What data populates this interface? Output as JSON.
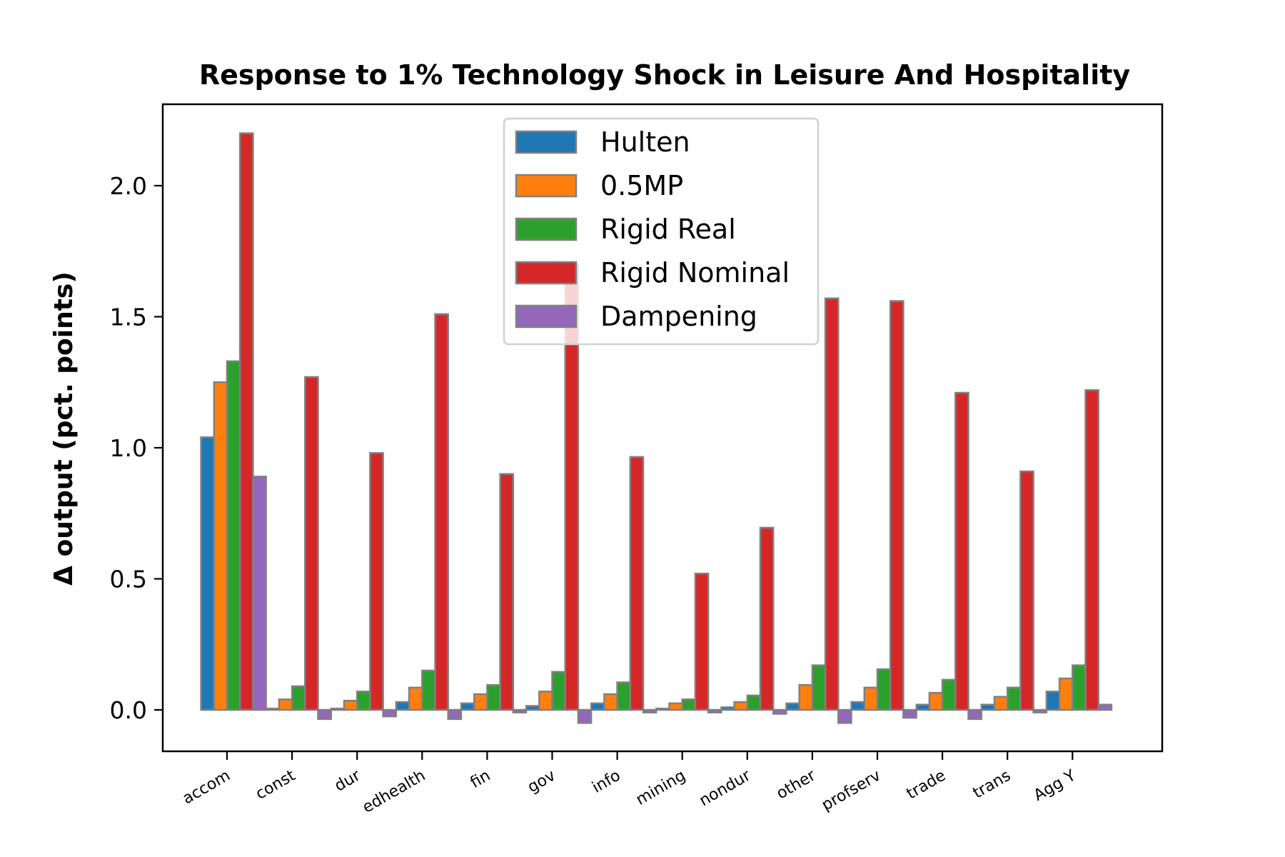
{
  "chart_data": {
    "type": "bar",
    "title": "Response to 1% Technology Shock in Leisure And Hospitality",
    "xlabel": "",
    "ylabel": "Δ output (pct. points)",
    "ylim": [
      -0.16,
      2.3
    ],
    "yticks": [
      "0.0",
      "0.5",
      "1.0",
      "1.5",
      "2.0"
    ],
    "ytick_values": [
      0.0,
      0.5,
      1.0,
      1.5,
      2.0
    ],
    "grid": false,
    "legend_position": "upper center",
    "categories": [
      "accom",
      "const",
      "dur",
      "edhealth",
      "fin",
      "gov",
      "info",
      "mining",
      "nondur",
      "other",
      "profserv",
      "trade",
      "trans",
      "Agg Y"
    ],
    "series": [
      {
        "name": "Hulten",
        "color": "#1f77b4",
        "values": [
          1.04,
          0.005,
          0.005,
          0.03,
          0.025,
          0.015,
          0.025,
          0.005,
          0.01,
          0.025,
          0.03,
          0.02,
          0.02,
          0.07
        ]
      },
      {
        "name": "0.5MP",
        "color": "#ff7f0e",
        "values": [
          1.25,
          0.04,
          0.035,
          0.085,
          0.06,
          0.07,
          0.06,
          0.025,
          0.03,
          0.095,
          0.085,
          0.065,
          0.05,
          0.12
        ]
      },
      {
        "name": "Rigid Real",
        "color": "#2ca02c",
        "values": [
          1.33,
          0.09,
          0.07,
          0.15,
          0.095,
          0.145,
          0.105,
          0.04,
          0.055,
          0.17,
          0.155,
          0.115,
          0.085,
          0.17
        ]
      },
      {
        "name": "Rigid Nominal",
        "color": "#d62728",
        "values": [
          2.2,
          1.27,
          0.98,
          1.51,
          0.9,
          1.7,
          0.965,
          0.52,
          0.695,
          1.57,
          1.56,
          1.21,
          0.91,
          1.22
        ]
      },
      {
        "name": "Dampening",
        "color": "#9467bd",
        "values": [
          0.89,
          -0.035,
          -0.025,
          -0.035,
          -0.01,
          -0.05,
          -0.01,
          -0.01,
          -0.015,
          -0.05,
          -0.03,
          -0.035,
          -0.01,
          0.02
        ]
      }
    ]
  }
}
